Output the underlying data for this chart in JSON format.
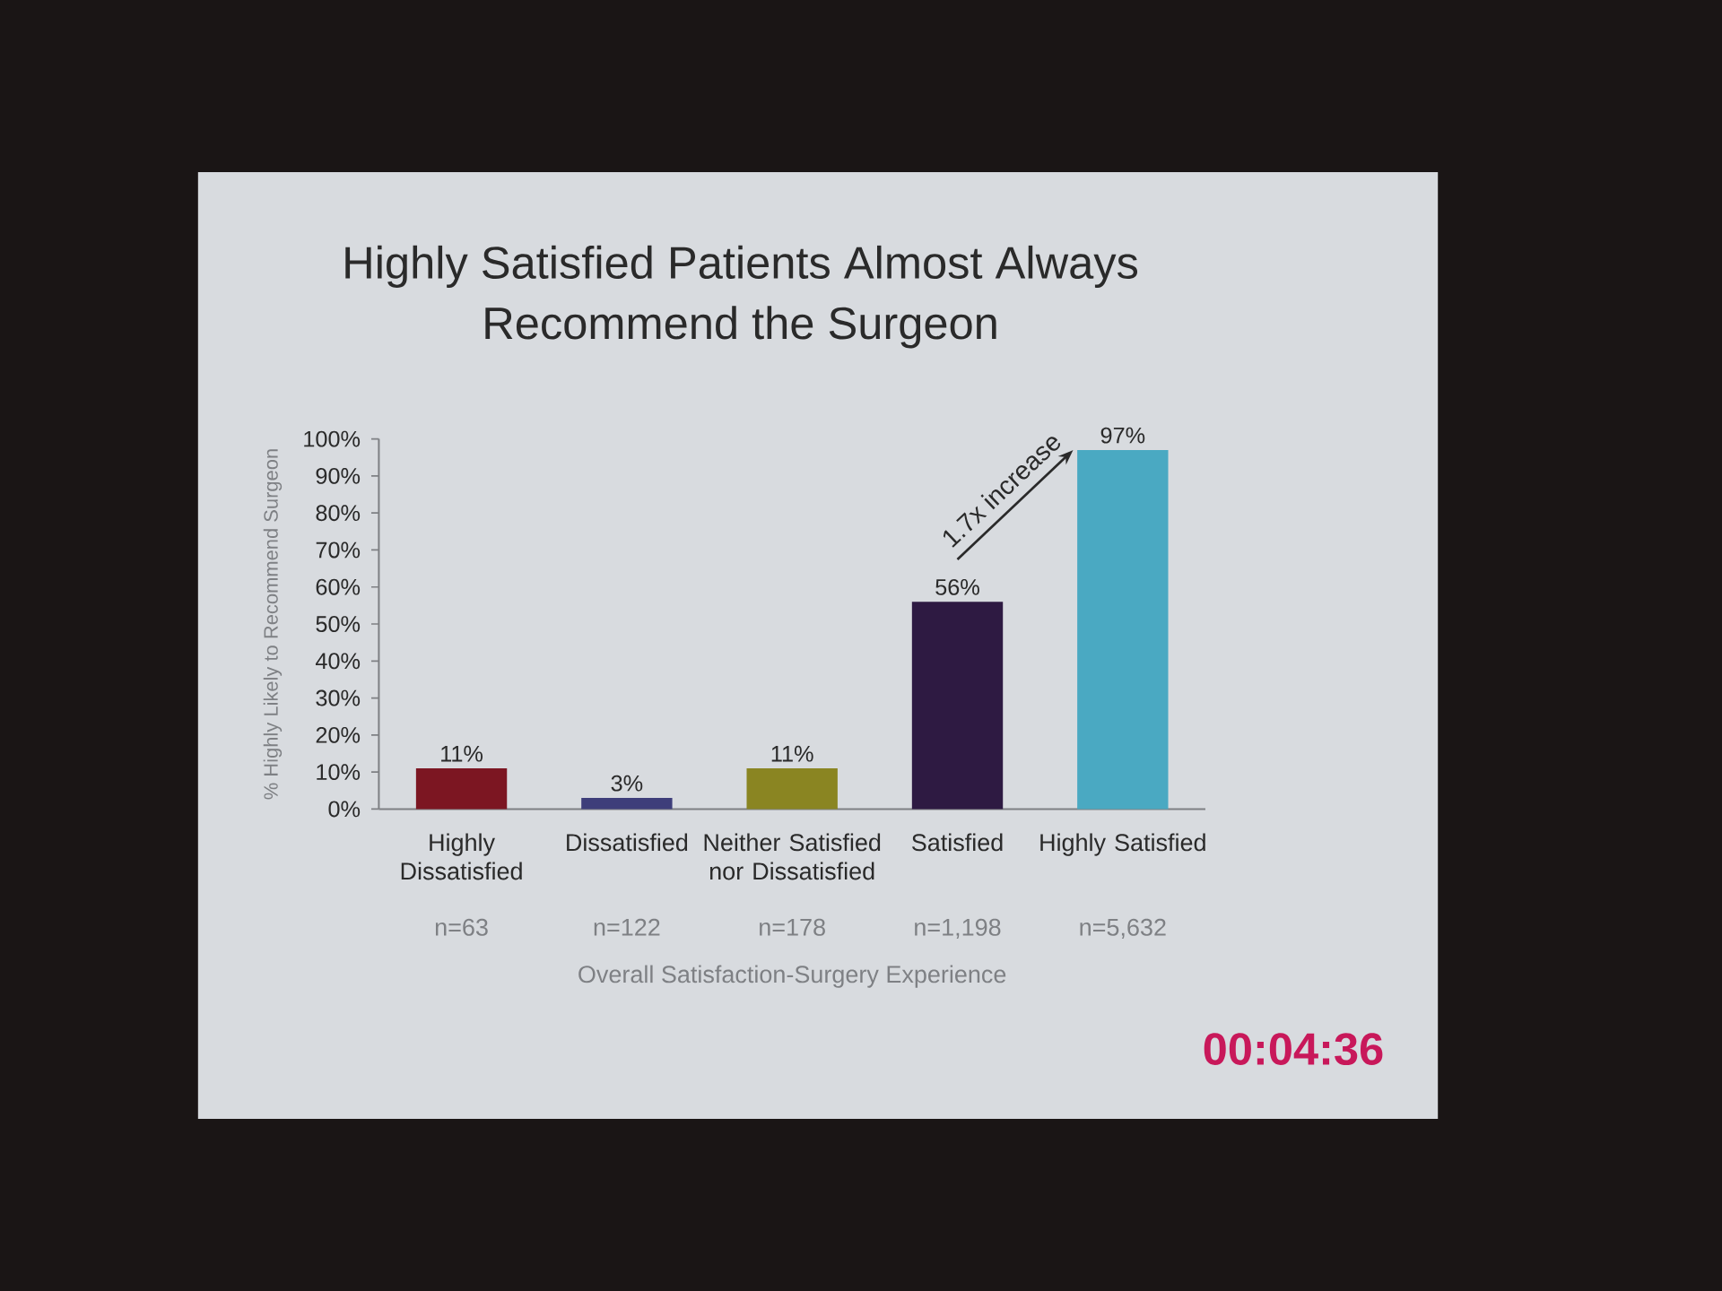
{
  "chart_data": {
    "type": "bar",
    "title": "Highly Satisfied Patients Almost Always Recommend the Surgeon",
    "xlabel": "Overall Satisfaction-Surgery Experience",
    "ylabel": "% Highly Likely to Recommend Surgeon",
    "categories": [
      "Highly Dissatisfied",
      "Dissatisfied",
      "Neither Satisfied nor Dissatisfied",
      "Satisfied",
      "Highly Satisfied"
    ],
    "values": [
      11,
      3,
      11,
      56,
      97
    ],
    "value_labels": [
      "11%",
      "3%",
      "11%",
      "56%",
      "97%"
    ],
    "colors": [
      "#7c1622",
      "#3e3e7a",
      "#8a8522",
      "#2e1a42",
      "#4aa9c2"
    ],
    "ylim": [
      0,
      100
    ],
    "yticks": [
      {
        "value": 0,
        "label": "0%"
      },
      {
        "value": 10,
        "label": "10%"
      },
      {
        "value": 20,
        "label": "20%"
      },
      {
        "value": 30,
        "label": "30%"
      },
      {
        "value": 40,
        "label": "40%"
      },
      {
        "value": 50,
        "label": "50%"
      },
      {
        "value": 60,
        "label": "60%"
      },
      {
        "value": 70,
        "label": "70%"
      },
      {
        "value": 80,
        "label": "80%"
      },
      {
        "value": 90,
        "label": "90%"
      },
      {
        "value": 100,
        "label": "100%"
      }
    ],
    "annotations": [
      {
        "text": "1.7x increase",
        "x": "Highly Satisfied",
        "y": 97
      },
      "n=63",
      "n=122",
      "n=178",
      "n=1,198",
      "n=5,632",
      "00:04:36"
    ]
  }
}
